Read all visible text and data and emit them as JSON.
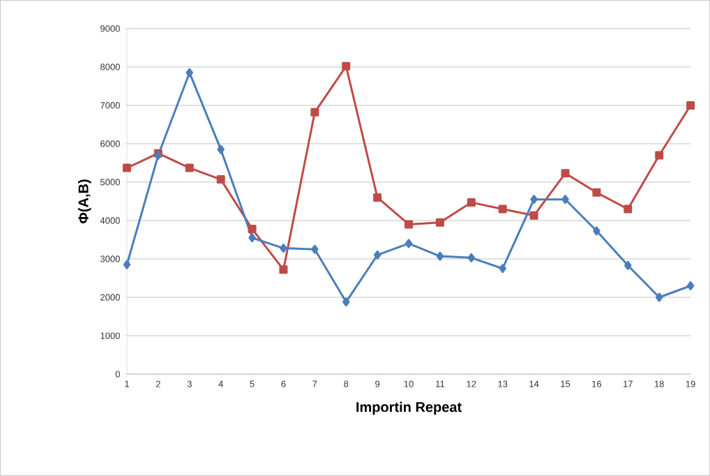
{
  "chart_data": {
    "type": "line",
    "xlabel": "**Importin Repeat**",
    "ylabel": "**Φ(A,B)**",
    "categories": [
      "1",
      "2",
      "3",
      "4",
      "5",
      "6",
      "7",
      "8",
      "9",
      "10",
      "11",
      "12",
      "13",
      "14",
      "15",
      "16",
      "17",
      "18",
      "19"
    ],
    "series": [
      {
        "color": "#4a7ebb",
        "marker": "diamond",
        "values": [
          2850,
          5700,
          7850,
          5850,
          3550,
          3280,
          3250,
          1880,
          3100,
          3400,
          3070,
          3030,
          2750,
          4550,
          4550,
          3730,
          2830,
          2000,
          2300
        ]
      },
      {
        "color": "#be4b48",
        "marker": "square",
        "values": [
          5370,
          5750,
          5370,
          5070,
          3780,
          2720,
          6820,
          8020,
          4600,
          3900,
          3950,
          4470,
          4300,
          4130,
          5230,
          4730,
          4300,
          5700,
          7000
        ]
      }
    ],
    "ylim": [
      0,
      9000
    ],
    "yticks": [
      0,
      1000,
      2000,
      3000,
      4000,
      5000,
      6000,
      7000,
      8000,
      9000
    ],
    "grid": "y",
    "line_style": "solid"
  }
}
